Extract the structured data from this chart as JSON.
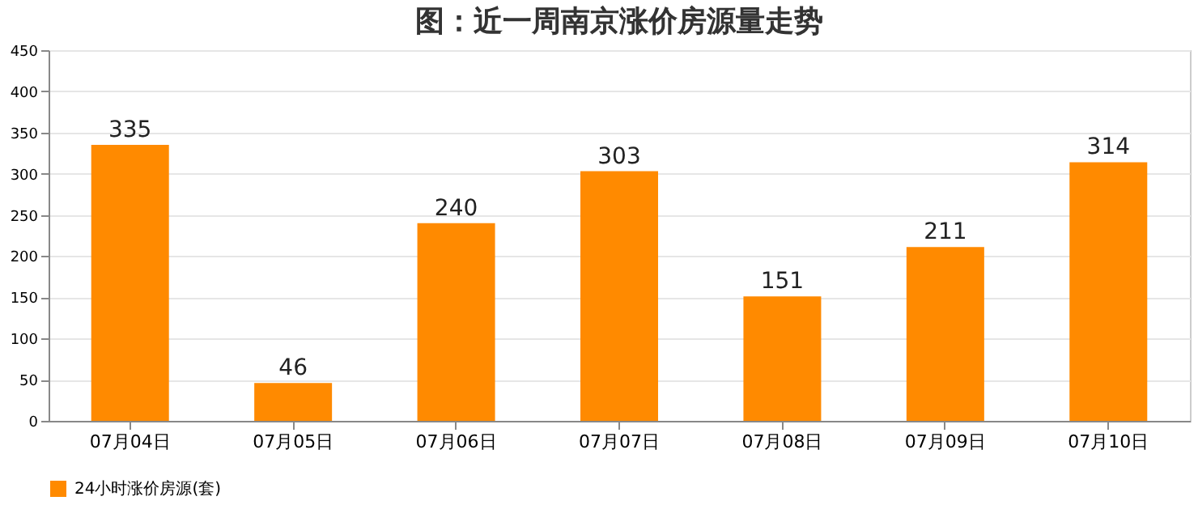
{
  "chart_data": {
    "type": "bar",
    "title": "图：近一周南京涨价房源量走势",
    "categories": [
      "07月04日",
      "07月05日",
      "07月06日",
      "07月07日",
      "07月08日",
      "07月09日",
      "07月10日"
    ],
    "series": [
      {
        "name": "24小时涨价房源(套)",
        "color": "#ff8a00",
        "values": [
          335,
          46,
          240,
          303,
          151,
          211,
          314
        ]
      }
    ],
    "ylim": [
      0,
      450
    ],
    "yticks": [
      0,
      50,
      100,
      150,
      200,
      250,
      300,
      350,
      400,
      450
    ],
    "grid": "y",
    "legend": "bottom",
    "data_labels": true
  }
}
